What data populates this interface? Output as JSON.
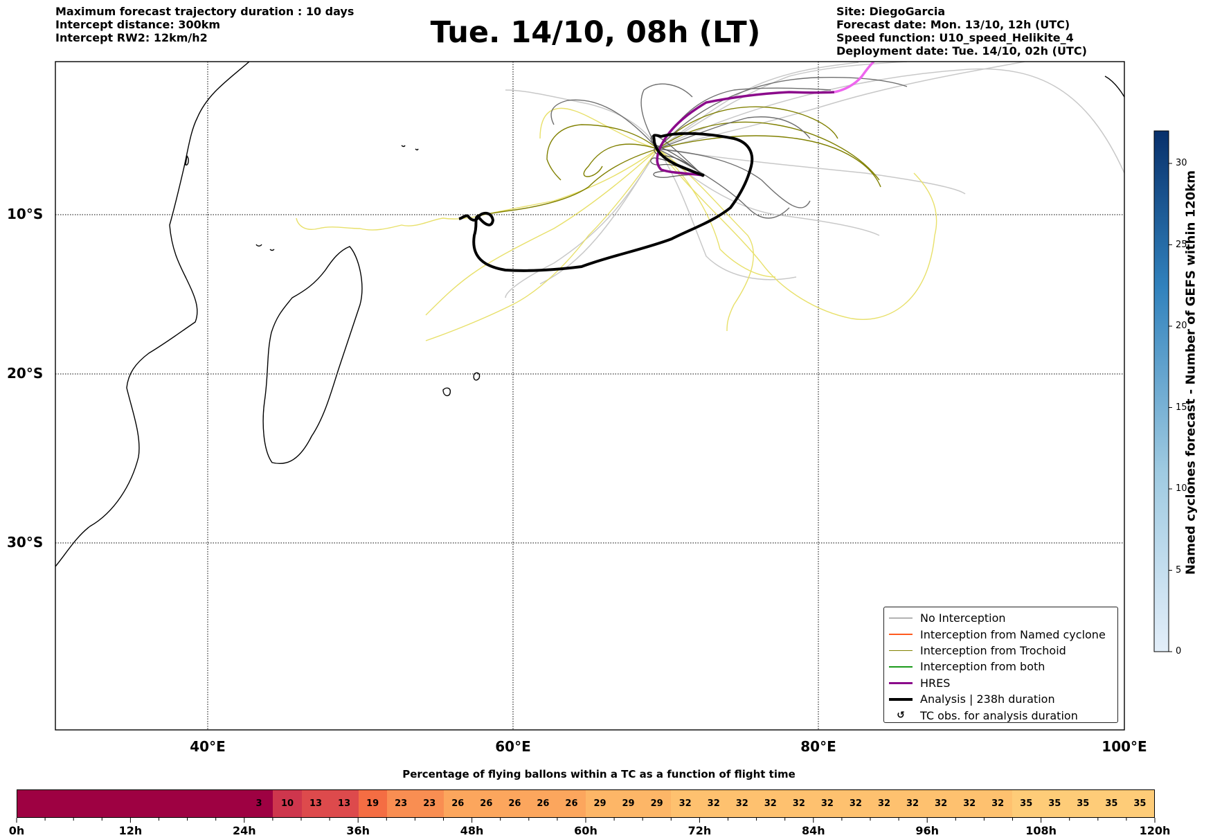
{
  "header_left": {
    "line1": "Maximum forecast trajectory duration : 10 days",
    "line2": "Intercept distance: 300km",
    "line3": "Intercept RW2: 12km/h2"
  },
  "title": "Tue. 14/10, 08h (LT)",
  "header_right": {
    "site": "Site: DiegoGarcia",
    "forecast_date": "Forecast date: Mon. 13/10, 12h (UTC)",
    "speed_function": "Speed function: U10_speed_Helikite_4",
    "deployment_date": "Deployment date: Tue. 14/10, 02h (UTC)"
  },
  "map": {
    "lat_labels": [
      "10°S",
      "20°S",
      "30°S"
    ],
    "lon_labels": [
      "40°E",
      "60°E",
      "80°E",
      "100°E"
    ]
  },
  "legend": {
    "items": [
      {
        "label": "No Interception",
        "color": "#6e6e6e"
      },
      {
        "label": "Interception from Named cyclone",
        "color": "#ff5a1f"
      },
      {
        "label": "Interception from Trochoid",
        "color": "#808000"
      },
      {
        "label": "Interception from both",
        "color": "#1a9a1a"
      },
      {
        "label": "HRES",
        "color": "#8b0a8b"
      },
      {
        "label": "Analysis | 238h duration",
        "color": "#000000"
      },
      {
        "label": "TC obs. for analysis duration",
        "icon": "cyclone-symbol-icon"
      }
    ]
  },
  "colorbar": {
    "label": "Named cyclones forecast - Number of GEFS within 120km",
    "ticks": [
      "0",
      "5",
      "10",
      "15",
      "20",
      "25",
      "30"
    ],
    "min": 0,
    "max": 32
  },
  "percentage_bar": {
    "title": "Percentage of flying ballons within a TC as a function of flight time",
    "blank_leading_steps": 8,
    "values": [
      "3",
      "10",
      "13",
      "13",
      "19",
      "23",
      "23",
      "26",
      "26",
      "26",
      "26",
      "26",
      "29",
      "29",
      "29",
      "32",
      "32",
      "32",
      "32",
      "32",
      "32",
      "32",
      "32",
      "32",
      "32",
      "32",
      "32",
      "35",
      "35",
      "35",
      "35",
      "35"
    ],
    "tick_labels": [
      "0h",
      "12h",
      "24h",
      "36h",
      "48h",
      "60h",
      "72h",
      "84h",
      "96h",
      "108h",
      "120h"
    ]
  }
}
